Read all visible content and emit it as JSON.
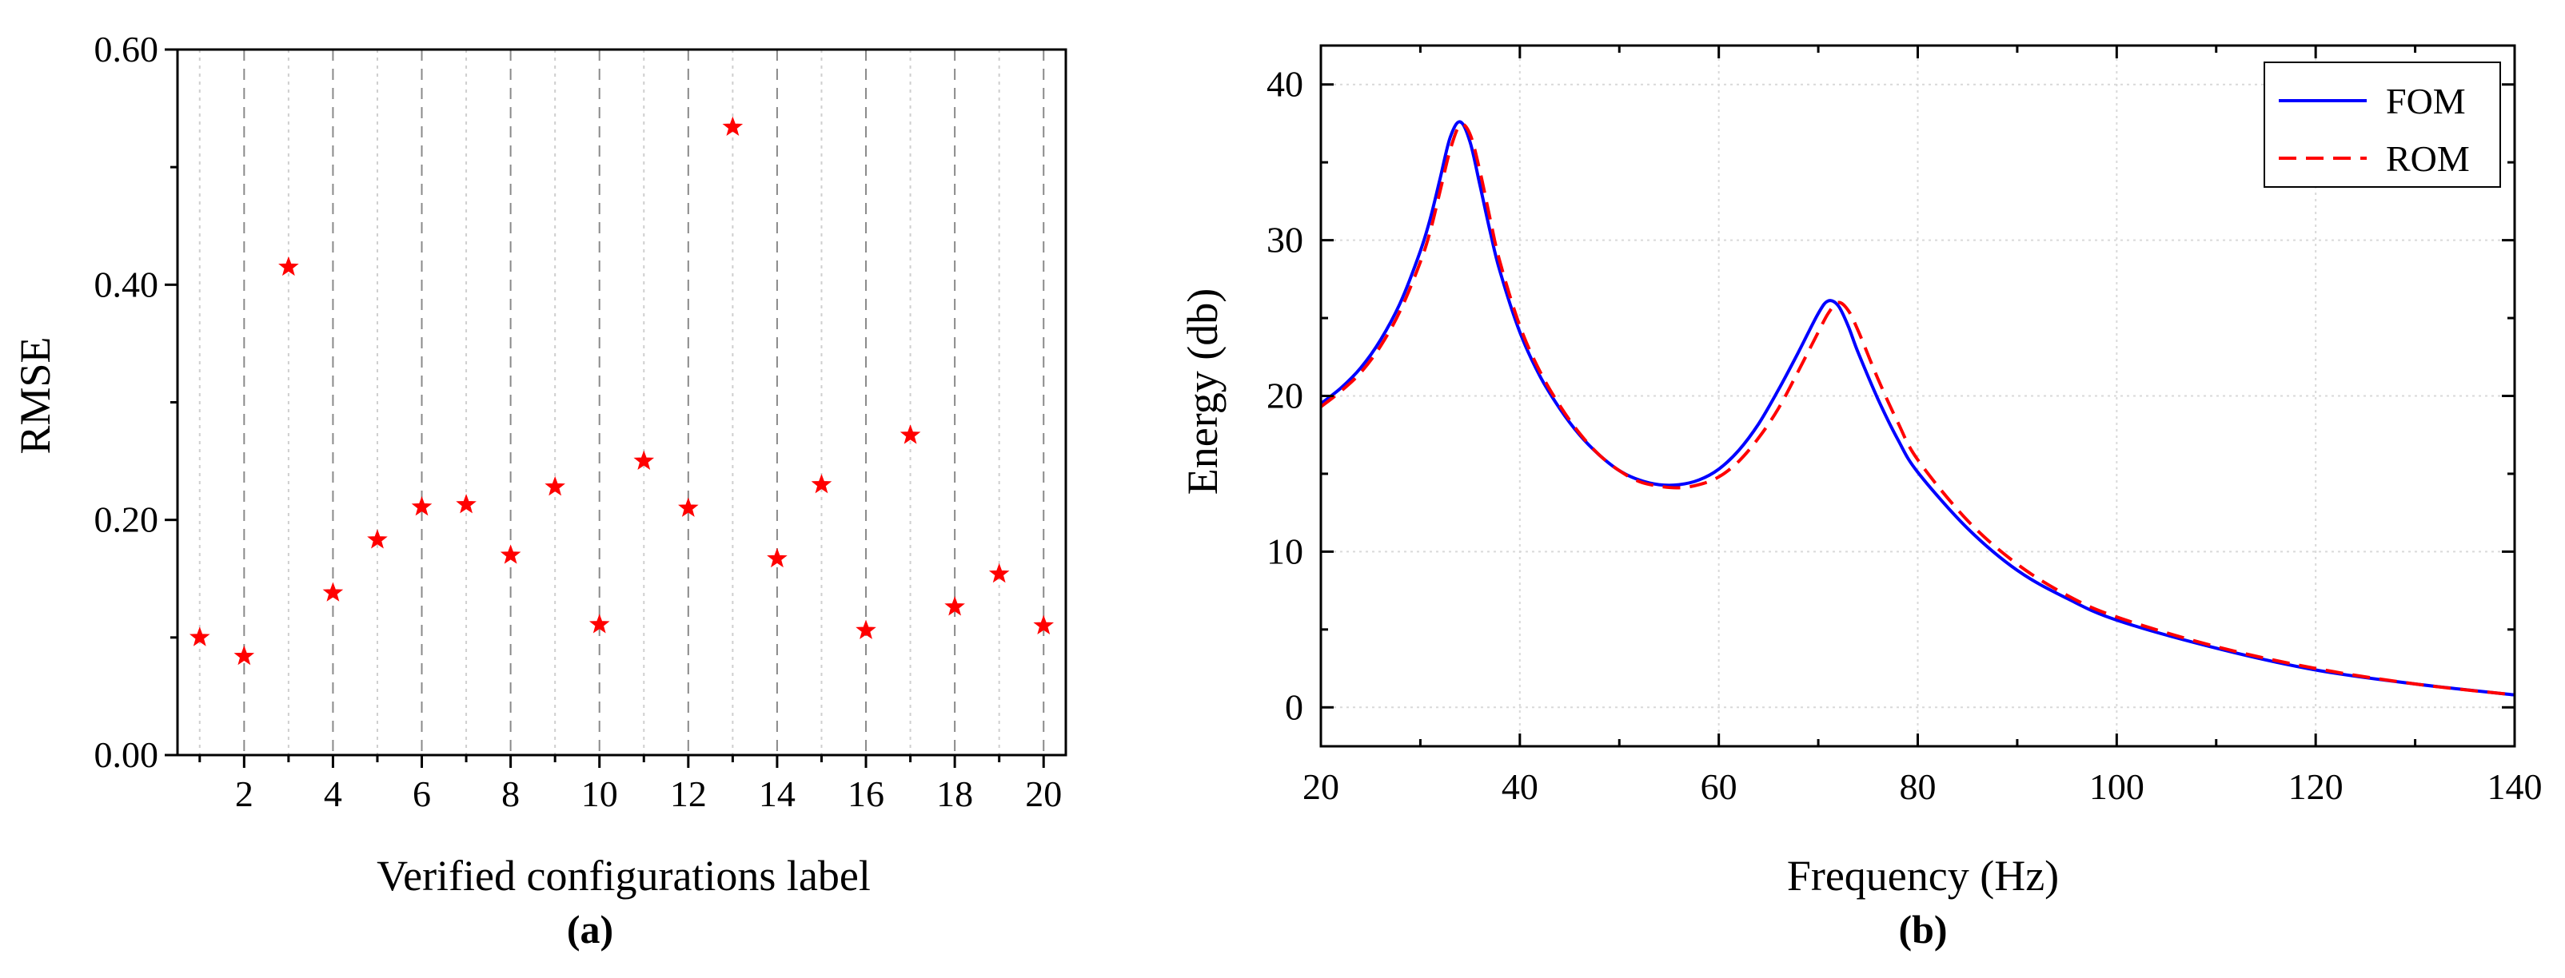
{
  "chart_data": [
    {
      "type": "scatter",
      "panel_label": "(a)",
      "xlabel": "Verified configurations label",
      "ylabel": "RMSE",
      "xlim": [
        0.5,
        20.5
      ],
      "ylim": [
        0,
        0.6
      ],
      "xticks": [
        2,
        4,
        6,
        8,
        10,
        12,
        14,
        16,
        18,
        20
      ],
      "yticks": [
        0.0,
        0.2,
        0.4,
        0.6
      ],
      "ytick_labels": [
        "0.00",
        "0.20",
        "0.40",
        "0.60"
      ],
      "grid": "vertical dashed at each integer label",
      "marker": "star",
      "color": "#ff0000",
      "x": [
        1,
        2,
        3,
        4,
        5,
        6,
        7,
        8,
        9,
        10,
        11,
        12,
        13,
        14,
        15,
        16,
        17,
        18,
        19,
        20
      ],
      "values": [
        0.1,
        0.084,
        0.415,
        0.138,
        0.183,
        0.211,
        0.213,
        0.17,
        0.228,
        0.111,
        0.25,
        0.21,
        0.534,
        0.167,
        0.23,
        0.106,
        0.272,
        0.126,
        0.154,
        0.11
      ]
    },
    {
      "type": "line",
      "panel_label": "(b)",
      "xlabel": "Frequency (Hz)",
      "ylabel": "Energy (db)",
      "xlim": [
        20,
        140
      ],
      "ylim": [
        -2.5,
        42.5
      ],
      "xticks": [
        20,
        40,
        60,
        80,
        100,
        120,
        140
      ],
      "yticks": [
        0,
        10,
        20,
        30,
        40
      ],
      "grid": "dotted both axes",
      "legend": "top-right",
      "series": [
        {
          "name": "FOM",
          "color": "#0000ff",
          "style": "solid",
          "x": [
            20,
            22,
            24,
            26,
            28,
            30,
            31,
            32,
            33,
            34,
            35,
            36,
            37,
            38,
            40,
            42,
            44,
            46,
            48,
            50,
            52,
            54,
            56,
            58,
            60,
            62,
            64,
            66,
            68,
            70,
            71,
            72,
            73,
            74,
            76,
            78,
            80,
            85,
            90,
            95,
            100,
            110,
            120,
            130,
            140
          ],
          "y": [
            19.5,
            20.5,
            21.8,
            23.6,
            26.0,
            29.3,
            31.4,
            34.0,
            36.6,
            37.6,
            36.3,
            33.5,
            30.6,
            28.0,
            24.1,
            21.3,
            19.2,
            17.5,
            16.2,
            15.2,
            14.6,
            14.3,
            14.3,
            14.6,
            15.3,
            16.5,
            18.2,
            20.4,
            22.8,
            25.3,
            26.1,
            25.8,
            24.5,
            22.8,
            19.8,
            17.2,
            15.1,
            11.5,
            8.8,
            7.0,
            5.6,
            3.8,
            2.4,
            1.5,
            0.8
          ]
        },
        {
          "name": "ROM",
          "color": "#ff0000",
          "style": "dashed",
          "x": [
            20,
            22,
            24,
            26,
            28,
            30,
            31,
            32,
            33,
            34,
            35,
            36,
            37,
            38,
            40,
            42,
            44,
            46,
            48,
            50,
            52,
            54,
            56,
            58,
            60,
            62,
            64,
            66,
            68,
            70,
            71,
            72,
            73,
            74,
            76,
            78,
            80,
            85,
            90,
            95,
            100,
            110,
            120,
            130,
            140
          ],
          "y": [
            19.3,
            20.3,
            21.5,
            23.2,
            25.5,
            28.6,
            30.6,
            33.2,
            35.8,
            37.4,
            36.8,
            34.4,
            31.4,
            28.6,
            24.5,
            21.6,
            19.4,
            17.6,
            16.2,
            15.2,
            14.5,
            14.2,
            14.1,
            14.3,
            14.8,
            15.8,
            17.3,
            19.2,
            21.6,
            24.1,
            25.3,
            26.0,
            25.5,
            24.2,
            21.1,
            18.3,
            15.9,
            12.0,
            9.2,
            7.2,
            5.8,
            3.9,
            2.5,
            1.5,
            0.8
          ]
        }
      ]
    }
  ]
}
